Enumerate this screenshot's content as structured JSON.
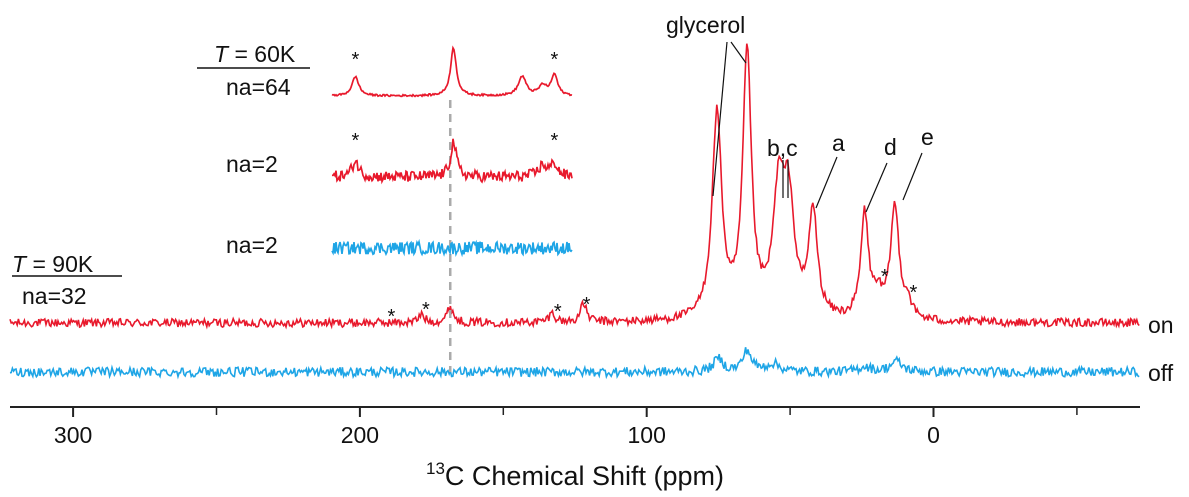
{
  "chart_data": {
    "type": "line",
    "title": "",
    "xlabel": "13C Chemical Shift (ppm)",
    "xlabel_parts": {
      "sup": "13",
      "text": "C Chemical Shift (ppm)"
    },
    "ylabel": "",
    "xlim": [
      322,
      -72
    ],
    "x_reversed": true,
    "x_ticks": [
      300,
      200,
      100,
      0
    ],
    "x_tick_labels": [
      "300",
      "200",
      "100",
      "0"
    ],
    "grid": false,
    "colors": {
      "on": "#e8192c",
      "off": "#1ea5e6",
      "annotation": "#111111",
      "guide": "#aaaaaa"
    },
    "main_series": [
      {
        "name": "on",
        "color": "#e8192c",
        "noise": 1.6,
        "peaks": [
          {
            "ppm": 75.5,
            "height": 78,
            "width": 2.0,
            "label": ""
          },
          {
            "ppm": 65.0,
            "height": 100,
            "width": 1.8,
            "label": ""
          },
          {
            "ppm": 54.0,
            "height": 45,
            "width": 2.3,
            "label": ""
          },
          {
            "ppm": 50.5,
            "height": 42,
            "width": 2.3,
            "label": ""
          },
          {
            "ppm": 42.0,
            "height": 40,
            "width": 1.8,
            "label": ""
          },
          {
            "ppm": 24.0,
            "height": 40,
            "width": 1.6,
            "label": ""
          },
          {
            "ppm": 13.5,
            "height": 43,
            "width": 1.8,
            "label": ""
          },
          {
            "ppm": 19.5,
            "height": 8,
            "width": 1.8,
            "label": ""
          },
          {
            "ppm": 9.0,
            "height": 6,
            "width": 1.5,
            "label": ""
          },
          {
            "ppm": 168.5,
            "height": 6,
            "width": 1.3,
            "label": ""
          },
          {
            "ppm": 178.5,
            "height": 3,
            "width": 1.3,
            "label": ""
          },
          {
            "ppm": 133.0,
            "height": 3.5,
            "width": 1.3,
            "label": ""
          },
          {
            "ppm": 122.0,
            "height": 7,
            "width": 1.3,
            "label": ""
          }
        ]
      },
      {
        "name": "off",
        "color": "#1ea5e6",
        "noise": 1.8,
        "peaks": [
          {
            "ppm": 75.0,
            "height": 5,
            "width": 2.0,
            "label": ""
          },
          {
            "ppm": 65.0,
            "height": 8,
            "width": 1.8,
            "label": ""
          },
          {
            "ppm": 56.0,
            "height": 3,
            "width": 3.0,
            "label": ""
          },
          {
            "ppm": 24.0,
            "height": 2,
            "width": 2.5,
            "label": ""
          },
          {
            "ppm": 13.0,
            "height": 4,
            "width": 2.5,
            "label": ""
          }
        ]
      }
    ],
    "series_labels": {
      "on": "on",
      "off": "off"
    },
    "main_labels": {
      "temperature": "T = 90K",
      "temperature_italic": "T",
      "temperature_rest": " = 90K",
      "scans": "na=32"
    },
    "peak_labels": {
      "glycerol": "glycerol",
      "bc": "b,c",
      "a": "a",
      "d": "d",
      "e": "e",
      "asterisk": "*"
    },
    "asterisk_positions_ppm": [
      189,
      177,
      131,
      121,
      17,
      7
    ],
    "inset": {
      "x_range_ppm": [
        210,
        128
      ],
      "temperature": "T = 60K",
      "temperature_italic": "T",
      "temperature_rest": " = 60K",
      "dashed_line_ppm": 168.5,
      "traces": [
        {
          "label": "na=64",
          "color": "#e8192c",
          "noise": 0.6,
          "peaks": [
            {
              "ppm": 202,
              "height": 12,
              "width": 1.4
            },
            {
              "ppm": 168.5,
              "height": 30,
              "width": 1.2
            },
            {
              "ppm": 145,
              "height": 12,
              "width": 1.6
            },
            {
              "ppm": 138,
              "height": 6,
              "width": 1.6
            },
            {
              "ppm": 134,
              "height": 13,
              "width": 1.3
            }
          ],
          "asterisks_ppm": [
            202,
            134
          ]
        },
        {
          "label": "na=2",
          "color": "#e8192c",
          "noise": 3.5,
          "peaks": [
            {
              "ppm": 202,
              "height": 10,
              "width": 1.4
            },
            {
              "ppm": 168.5,
              "height": 22,
              "width": 1.2
            },
            {
              "ppm": 138,
              "height": 7,
              "width": 1.8
            },
            {
              "ppm": 134,
              "height": 8,
              "width": 1.4
            }
          ],
          "asterisks_ppm": [
            202,
            134
          ]
        },
        {
          "label": "na=2",
          "color": "#1ea5e6",
          "noise": 4.0,
          "peaks": [],
          "asterisks_ppm": []
        }
      ]
    }
  }
}
